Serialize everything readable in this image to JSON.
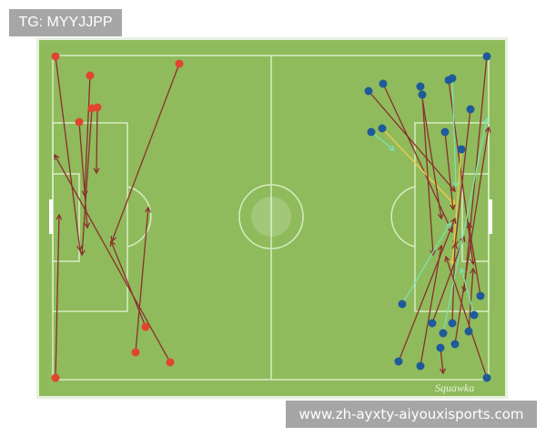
{
  "overlay_label": "TG: MYYJJPP",
  "watermark_url": "www.zh-ayxty-aiyouxisports.com",
  "pitch": {
    "brand": "Squawka",
    "colors": {
      "grass": "#8fbb5c",
      "lines": "#d9ecc2",
      "frame": "#e8f0df",
      "home_team": "#e0452e",
      "away_team": "#1f5a9a",
      "pass_completed": "#8b2f2f",
      "pass_alt": "#7fe0b0",
      "pass_cross": "#f2c94c"
    }
  }
}
